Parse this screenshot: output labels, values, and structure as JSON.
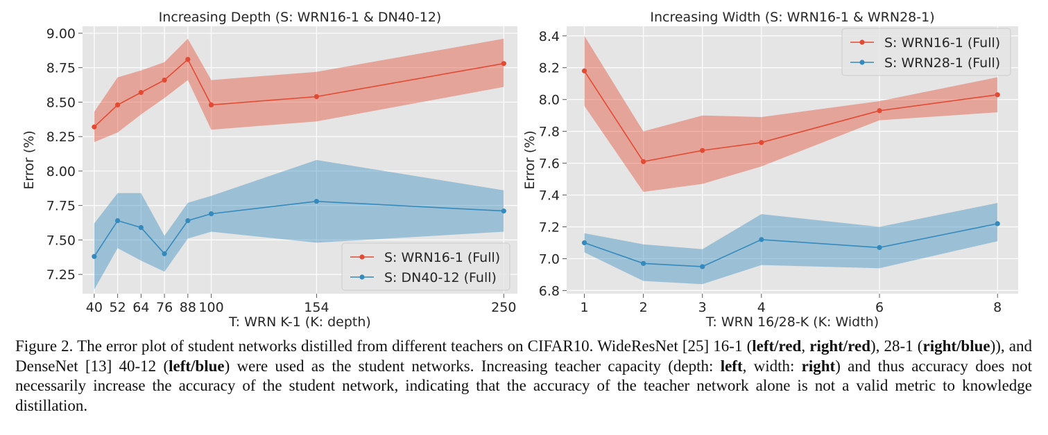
{
  "chart_data": [
    {
      "type": "line",
      "title": "Increasing Depth (S: WRN16-1 & DN40-12)",
      "xlabel": "T: WRN K-1 (K: depth)",
      "ylabel": "Error (%)",
      "x": [
        40,
        52,
        64,
        76,
        88,
        100,
        154,
        250
      ],
      "xticks": [
        "40",
        "52",
        "64",
        "76",
        "88",
        "100",
        "154",
        "250"
      ],
      "xlim": [
        34,
        257
      ],
      "ylim": [
        7.11,
        9.05
      ],
      "yticks": [
        "7.25",
        "7.50",
        "7.75",
        "8.00",
        "8.25",
        "8.50",
        "8.75",
        "9.00"
      ],
      "ytick_values": [
        7.25,
        7.5,
        7.75,
        8.0,
        8.25,
        8.5,
        8.75,
        9.0
      ],
      "grid": true,
      "legend_position": "bottom-right",
      "series": [
        {
          "name": "S: WRN16-1 (Full)",
          "color": "#e24a33",
          "values": [
            8.32,
            8.48,
            8.57,
            8.66,
            8.81,
            8.48,
            8.54,
            8.78
          ],
          "upper": [
            8.43,
            8.68,
            8.73,
            8.79,
            8.96,
            8.66,
            8.72,
            8.96
          ],
          "lower": [
            8.21,
            8.28,
            8.41,
            8.53,
            8.66,
            8.3,
            8.36,
            8.61
          ]
        },
        {
          "name": "S: DN40-12 (Full)",
          "color": "#348abd",
          "values": [
            7.38,
            7.64,
            7.59,
            7.4,
            7.64,
            7.69,
            7.78,
            7.71
          ],
          "upper": [
            7.62,
            7.84,
            7.84,
            7.53,
            7.77,
            7.82,
            8.08,
            7.86
          ],
          "lower": [
            7.14,
            7.44,
            7.35,
            7.27,
            7.51,
            7.56,
            7.48,
            7.56
          ]
        }
      ]
    },
    {
      "type": "line",
      "title": "Increasing Width (S: WRN16-1 & WRN28-1)",
      "xlabel": "T: WRN 16/28-K (K: Width)",
      "ylabel": "Error (%)",
      "x": [
        1,
        2,
        3,
        4,
        6,
        8
      ],
      "xticks": [
        "1",
        "2",
        "3",
        "4",
        "6",
        "8"
      ],
      "xlim": [
        0.7,
        8.35
      ],
      "ylim": [
        6.78,
        8.46
      ],
      "yticks": [
        "6.8",
        "7.0",
        "7.2",
        "7.4",
        "7.6",
        "7.8",
        "8.0",
        "8.2",
        "8.4"
      ],
      "ytick_values": [
        6.8,
        7.0,
        7.2,
        7.4,
        7.6,
        7.8,
        8.0,
        8.2,
        8.4
      ],
      "grid": true,
      "legend_position": "top-right",
      "series": [
        {
          "name": "S: WRN16-1 (Full)",
          "color": "#e24a33",
          "values": [
            8.18,
            7.61,
            7.68,
            7.73,
            7.93,
            8.03
          ],
          "upper": [
            8.4,
            7.8,
            7.9,
            7.89,
            7.99,
            8.14
          ],
          "lower": [
            7.96,
            7.42,
            7.47,
            7.58,
            7.87,
            7.92
          ]
        },
        {
          "name": "S: WRN28-1 (Full)",
          "color": "#348abd",
          "values": [
            7.1,
            6.97,
            6.95,
            7.12,
            7.07,
            7.22
          ],
          "upper": [
            7.16,
            7.09,
            7.06,
            7.28,
            7.2,
            7.35
          ],
          "lower": [
            7.04,
            6.86,
            6.84,
            6.96,
            6.94,
            7.11
          ]
        }
      ]
    }
  ],
  "caption": {
    "parts": [
      {
        "text": "Figure 2. The error plot of student networks distilled from different teachers on CIFAR10.  WideResNet [25] 16-1 (",
        "bold": false
      },
      {
        "text": "left/red",
        "bold": true
      },
      {
        "text": ", ",
        "bold": false
      },
      {
        "text": "right/red",
        "bold": true
      },
      {
        "text": "), 28-1 (",
        "bold": false
      },
      {
        "text": "right/blue",
        "bold": true
      },
      {
        "text": ")), and DenseNet [13] 40-12 (",
        "bold": false
      },
      {
        "text": "left/blue",
        "bold": true
      },
      {
        "text": ") were used as the student networks. Increasing teacher capacity (depth: ",
        "bold": false
      },
      {
        "text": "left",
        "bold": true
      },
      {
        "text": ", width: ",
        "bold": false
      },
      {
        "text": "right",
        "bold": true
      },
      {
        "text": ") and thus accuracy does not necessarily increase the accuracy of the student network, indicating that the accuracy of the teacher network alone is not a valid metric to knowledge distillation.",
        "bold": false
      }
    ]
  }
}
